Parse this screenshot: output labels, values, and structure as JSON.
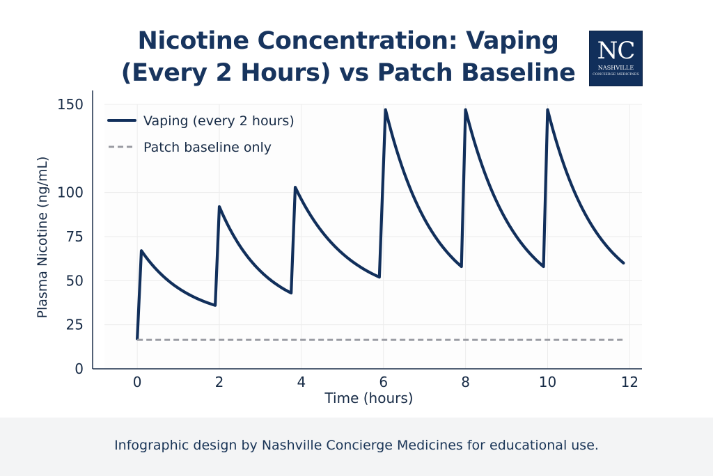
{
  "title": {
    "line1": "Nicotine Concentration: Vaping",
    "line2": "(Every 2 Hours) vs Patch Baseline"
  },
  "logo": {
    "mark": "NC",
    "name": "NASHVILLE",
    "subtitle": "CONCIERGE MEDICINES"
  },
  "chart_data": {
    "type": "line",
    "title": "Nicotine Concentration: Vaping (Every 2 Hours) vs Patch Baseline",
    "xlabel": "Time (hours)",
    "ylabel": "Plasma Nicotine (ng/mL)",
    "xlim": [
      -0.8,
      12.3
    ],
    "ylim": [
      0,
      150
    ],
    "x_ticks": [
      0,
      2,
      4,
      6,
      8,
      10,
      12
    ],
    "y_ticks": [
      0,
      25,
      50,
      75,
      100,
      150
    ],
    "grid": true,
    "legend_position": "top-left",
    "series": [
      {
        "name": "Vaping (every 2 hours)",
        "style": "solid",
        "color": "#112f5b",
        "points": [
          [
            0.0,
            17
          ],
          [
            0.1,
            67
          ],
          [
            1.9,
            36
          ],
          [
            2.0,
            92
          ],
          [
            3.75,
            43
          ],
          [
            3.85,
            103
          ],
          [
            5.9,
            52
          ],
          [
            6.05,
            147
          ],
          [
            7.9,
            58
          ],
          [
            8.0,
            147
          ],
          [
            9.9,
            58
          ],
          [
            10.0,
            147
          ],
          [
            11.85,
            60
          ]
        ],
        "decay_segments": true
      },
      {
        "name": "Patch baseline only",
        "style": "dashed",
        "color": "#9a9ca3",
        "points": [
          [
            0.0,
            16.5
          ],
          [
            11.85,
            16.5
          ]
        ]
      }
    ]
  },
  "footer": {
    "text": "Infographic design by Nashville Concierge Medicines for educational use."
  }
}
